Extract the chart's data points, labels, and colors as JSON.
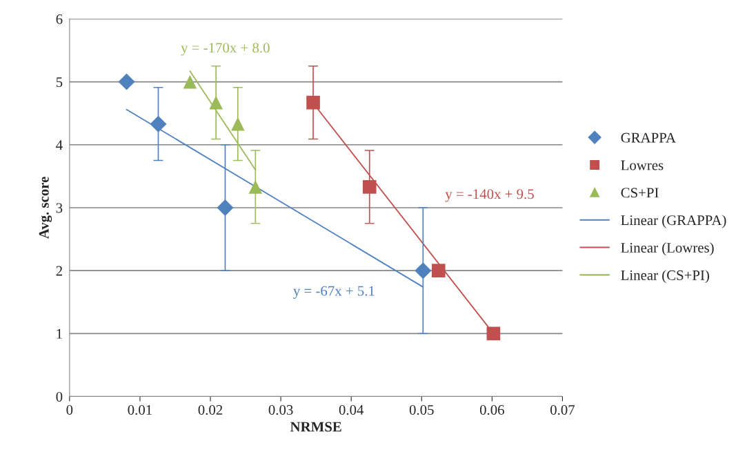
{
  "chart_data": {
    "type": "scatter",
    "xlabel": "NRMSE",
    "ylabel": "Avg. score",
    "xlim": [
      0,
      0.07
    ],
    "xticks": [
      0,
      0.01,
      0.02,
      0.03,
      0.04,
      0.05,
      0.06,
      0.07
    ],
    "ylim": [
      0,
      6
    ],
    "yticks": [
      0,
      1,
      2,
      3,
      4,
      5,
      6
    ],
    "grid": "y",
    "legend": "right",
    "series": [
      {
        "name": "GRAPPA",
        "marker": "diamond",
        "color": "#4f81bd",
        "x": [
          0.0081,
          0.0126,
          0.0221,
          0.0502
        ],
        "values": [
          5,
          4.33,
          3,
          2
        ],
        "errors": [
          null,
          0.58,
          1,
          1
        ]
      },
      {
        "name": "Lowres",
        "marker": "square",
        "color": "#c0504d",
        "x": [
          0.0346,
          0.0426,
          0.0524,
          0.0602
        ],
        "values": [
          4.67,
          3.33,
          2,
          1
        ],
        "errors": [
          0.58,
          0.58,
          null,
          null
        ]
      },
      {
        "name": "CS+PI",
        "marker": "triangle",
        "color": "#9bbb59",
        "x": [
          0.0171,
          0.0208,
          0.0239,
          0.0264
        ],
        "values": [
          5,
          4.67,
          4.33,
          3.33
        ],
        "errors": [
          null,
          0.58,
          0.58,
          0.58
        ]
      },
      {
        "name": "Linear (GRAPPA)",
        "type": "line",
        "marker": "none",
        "color": "#4f81bd",
        "x": [
          0.0081,
          0.0502
        ],
        "values": [
          4.56,
          1.74
        ]
      },
      {
        "name": "Linear (Lowres)",
        "type": "line",
        "marker": "none",
        "color": "#c0504d",
        "x": [
          0.0346,
          0.0602
        ],
        "values": [
          4.66,
          1.0
        ]
      },
      {
        "name": "Linear (CS+PI)",
        "type": "line",
        "marker": "none",
        "color": "#9bbb59",
        "x": [
          0.0171,
          0.0264
        ],
        "values": [
          5.17,
          3.6
        ]
      }
    ],
    "annotations": [
      "y = -67x + 5.1",
      "y = -140x + 9.5",
      "y = -170x + 8.0"
    ]
  }
}
